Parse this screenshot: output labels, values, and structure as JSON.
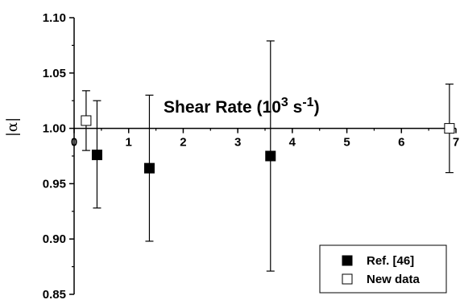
{
  "chart_data": {
    "type": "scatter",
    "title": "",
    "xlabel": "Shear Rate (10",
    "xlabel_sup1": "3",
    "xlabel_mid": " s",
    "xlabel_sup2": "-1",
    "xlabel_end": ")",
    "ylabel_left": "|",
    "ylabel_mid": "α",
    "ylabel_right": "|",
    "xlim": [
      0,
      7
    ],
    "ylim": [
      0.85,
      1.1
    ],
    "x_ticks": [
      "0",
      "1",
      "2",
      "3",
      "4",
      "5",
      "6",
      "7"
    ],
    "y_ticks": [
      "0.85",
      "0.90",
      "0.95",
      "1.00",
      "1.05",
      "1.10"
    ],
    "x_axis_crosses_y": 1.0,
    "grid": false,
    "legend_position": "bottom-right",
    "series": [
      {
        "name": "Ref. [46]",
        "marker": "filled-square",
        "color": "#000000",
        "x": [
          0.42,
          1.38,
          3.6
        ],
        "y": [
          0.976,
          0.964,
          0.975
        ],
        "err_low": [
          0.048,
          0.066,
          0.104
        ],
        "err_high": [
          0.049,
          0.066,
          0.104
        ]
      },
      {
        "name": "New data",
        "marker": "open-square",
        "color": "#000000",
        "x": [
          0.22,
          6.88
        ],
        "y": [
          1.007,
          1.0
        ],
        "err_low": [
          0.027,
          0.04
        ],
        "err_high": [
          0.027,
          0.04
        ]
      }
    ]
  }
}
